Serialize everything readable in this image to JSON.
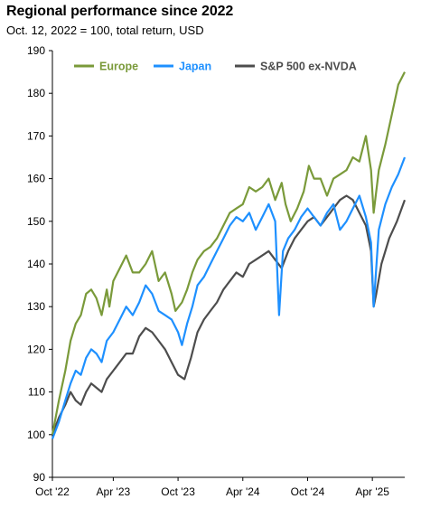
{
  "title": "Regional performance since 2022",
  "subtitle": "Oct. 12, 2022 = 100, total return, USD",
  "chart_data": {
    "type": "line",
    "title": "Regional performance since 2022",
    "subtitle": "Oct. 12, 2022 = 100, total return, USD",
    "xlabel": "",
    "ylabel": "",
    "ylim": [
      90,
      190
    ],
    "yticks": [
      90,
      100,
      110,
      120,
      130,
      140,
      150,
      160,
      170,
      180,
      190
    ],
    "xticks": [
      {
        "label": "Oct '22",
        "value": 2022.78
      },
      {
        "label": "Apr '23",
        "value": 2023.25
      },
      {
        "label": "Oct '23",
        "value": 2023.75
      },
      {
        "label": "Apr '24",
        "value": 2024.25
      },
      {
        "label": "Oct '24",
        "value": 2024.75
      },
      {
        "label": "Apr '25",
        "value": 2025.25
      }
    ],
    "xlim": [
      2022.78,
      2025.5
    ],
    "grid": false,
    "legend_position": "top",
    "series": [
      {
        "name": "Europe",
        "color": "#7a9a3a",
        "x": [
          2022.78,
          2022.83,
          2022.88,
          2022.92,
          2022.96,
          2023.0,
          2023.04,
          2023.08,
          2023.12,
          2023.16,
          2023.2,
          2023.22,
          2023.25,
          2023.3,
          2023.35,
          2023.4,
          2023.45,
          2023.5,
          2023.55,
          2023.6,
          2023.65,
          2023.7,
          2023.73,
          2023.78,
          2023.82,
          2023.86,
          2023.9,
          2023.95,
          2024.0,
          2024.05,
          2024.1,
          2024.15,
          2024.2,
          2024.25,
          2024.3,
          2024.35,
          2024.4,
          2024.45,
          2024.5,
          2024.55,
          2024.58,
          2024.62,
          2024.67,
          2024.72,
          2024.76,
          2024.8,
          2024.85,
          2024.9,
          2024.95,
          2025.0,
          2025.05,
          2025.1,
          2025.15,
          2025.2,
          2025.24,
          2025.26,
          2025.3,
          2025.35,
          2025.4,
          2025.45,
          2025.5
        ],
        "values": [
          100,
          108,
          115,
          122,
          126,
          128,
          133,
          134,
          132,
          128,
          134,
          130,
          136,
          139,
          142,
          138,
          138,
          140,
          143,
          136,
          138,
          133,
          129,
          131,
          134,
          138,
          141,
          143,
          144,
          146,
          149,
          152,
          153,
          154,
          158,
          157,
          158,
          160,
          155,
          159,
          154,
          150,
          153,
          157,
          163,
          160,
          160,
          156,
          160,
          161,
          162,
          165,
          164,
          170,
          162,
          152,
          162,
          168,
          175,
          182,
          185
        ]
      },
      {
        "name": "Japan",
        "color": "#1e90ff",
        "x": [
          2022.78,
          2022.83,
          2022.88,
          2022.92,
          2022.96,
          2023.0,
          2023.04,
          2023.08,
          2023.12,
          2023.16,
          2023.2,
          2023.25,
          2023.3,
          2023.35,
          2023.4,
          2023.45,
          2023.5,
          2023.55,
          2023.6,
          2023.65,
          2023.7,
          2023.75,
          2023.78,
          2023.82,
          2023.86,
          2023.9,
          2023.95,
          2024.0,
          2024.05,
          2024.1,
          2024.15,
          2024.2,
          2024.25,
          2024.3,
          2024.35,
          2024.4,
          2024.45,
          2024.5,
          2024.53,
          2024.56,
          2024.6,
          2024.65,
          2024.7,
          2024.75,
          2024.8,
          2024.85,
          2024.9,
          2024.95,
          2025.0,
          2025.05,
          2025.1,
          2025.15,
          2025.2,
          2025.24,
          2025.26,
          2025.3,
          2025.35,
          2025.4,
          2025.45,
          2025.5
        ],
        "values": [
          99,
          103,
          108,
          112,
          115,
          114,
          118,
          120,
          119,
          117,
          122,
          124,
          127,
          130,
          128,
          131,
          135,
          133,
          129,
          128,
          127,
          124,
          121,
          126,
          130,
          135,
          137,
          140,
          143,
          146,
          149,
          151,
          150,
          152,
          148,
          151,
          154,
          150,
          128,
          143,
          146,
          148,
          151,
          153,
          151,
          149,
          152,
          154,
          148,
          150,
          153,
          156,
          151,
          145,
          130,
          148,
          154,
          158,
          161,
          165
        ]
      },
      {
        "name": "S&P 500 ex-NVDA",
        "color": "#4d4d4d",
        "x": [
          2022.78,
          2022.83,
          2022.88,
          2022.92,
          2022.96,
          2023.0,
          2023.04,
          2023.08,
          2023.12,
          2023.16,
          2023.2,
          2023.25,
          2023.3,
          2023.35,
          2023.4,
          2023.45,
          2023.5,
          2023.55,
          2023.6,
          2023.65,
          2023.7,
          2023.75,
          2023.8,
          2023.85,
          2023.9,
          2023.95,
          2024.0,
          2024.05,
          2024.1,
          2024.15,
          2024.2,
          2024.25,
          2024.3,
          2024.35,
          2024.4,
          2024.45,
          2024.5,
          2024.55,
          2024.6,
          2024.65,
          2024.7,
          2024.75,
          2024.8,
          2024.85,
          2024.9,
          2024.95,
          2025.0,
          2025.05,
          2025.1,
          2025.15,
          2025.2,
          2025.24,
          2025.26,
          2025.28,
          2025.32,
          2025.38,
          2025.44,
          2025.5
        ],
        "values": [
          100,
          104,
          107,
          110,
          108,
          107,
          110,
          112,
          111,
          110,
          113,
          115,
          117,
          119,
          119,
          123,
          125,
          124,
          122,
          120,
          117,
          114,
          113,
          118,
          124,
          127,
          129,
          131,
          134,
          136,
          138,
          137,
          140,
          141,
          142,
          143,
          141,
          139,
          143,
          146,
          148,
          150,
          151,
          149,
          151,
          153,
          155,
          156,
          155,
          152,
          149,
          143,
          130,
          133,
          140,
          146,
          150,
          155
        ]
      }
    ]
  }
}
